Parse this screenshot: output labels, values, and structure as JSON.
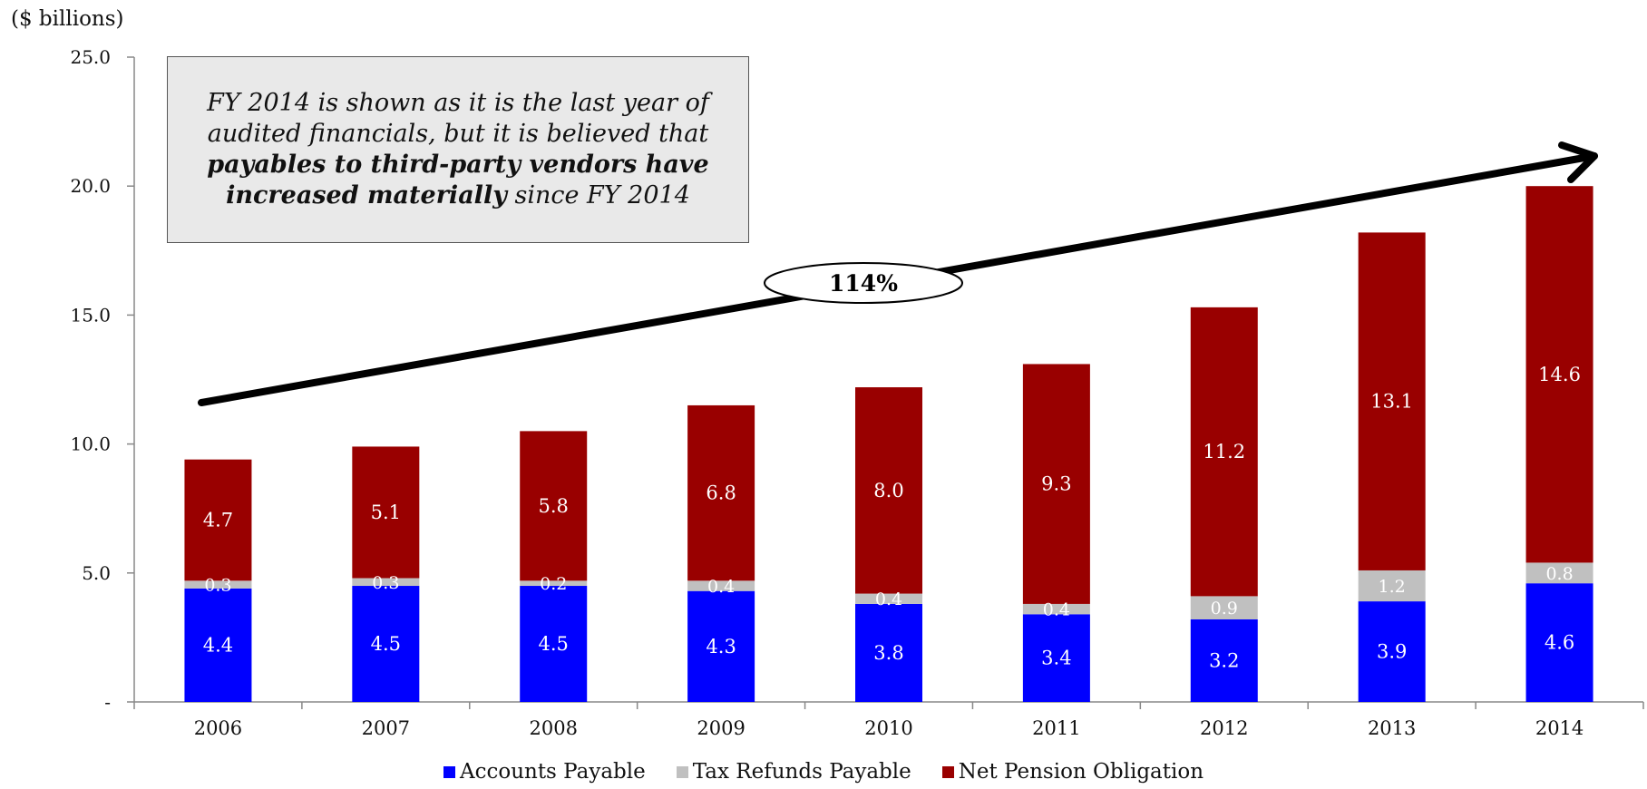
{
  "chart_data": {
    "type": "bar",
    "stacked": true,
    "unit_label": "($ billions)",
    "categories": [
      "2006",
      "2007",
      "2008",
      "2009",
      "2010",
      "2011",
      "2012",
      "2013",
      "2014"
    ],
    "series": [
      {
        "name": "Accounts Payable",
        "color": "#0000ff",
        "values": [
          4.4,
          4.5,
          4.5,
          4.3,
          3.8,
          3.4,
          3.2,
          3.9,
          4.6
        ],
        "labels": [
          "4.4",
          "4.5",
          "4.5",
          "4.3",
          "3.8",
          "3.4",
          "3.2",
          "3.9",
          "4.6"
        ]
      },
      {
        "name": "Tax Refunds Payable",
        "color": "#c0c0c0",
        "values": [
          0.3,
          0.3,
          0.2,
          0.4,
          0.4,
          0.4,
          0.9,
          1.2,
          0.8
        ],
        "labels": [
          "0.3",
          "0.3",
          "0.2",
          "0.4",
          "0.4",
          "0.4",
          "0.9",
          "1.2",
          "0.8"
        ]
      },
      {
        "name": "Net Pension Obligation",
        "color": "#990000",
        "values": [
          4.7,
          5.1,
          5.8,
          6.8,
          8.0,
          9.3,
          11.2,
          13.1,
          14.6
        ],
        "labels": [
          "4.7",
          "5.1",
          "5.8",
          "6.8",
          "8.0",
          "9.3",
          "11.2",
          "13.1",
          "14.6"
        ]
      }
    ],
    "ylim": [
      0,
      25
    ],
    "yticks": [
      0,
      5,
      10,
      15,
      20,
      25
    ],
    "ytick_labels": [
      "-",
      "5.0",
      "10.0",
      "15.0",
      "20.0",
      "25.0"
    ],
    "legend_position": "bottom",
    "grid": false,
    "annotations": {
      "growth_label": "114%",
      "callout": {
        "line1": "FY 2014 is shown as it is the last year of",
        "line2": "audited financials, but it is believed that",
        "line3_bold": "payables to third-party vendors have",
        "line4_bold": "increased materially",
        "line4_rest": " since FY 2014"
      }
    }
  }
}
